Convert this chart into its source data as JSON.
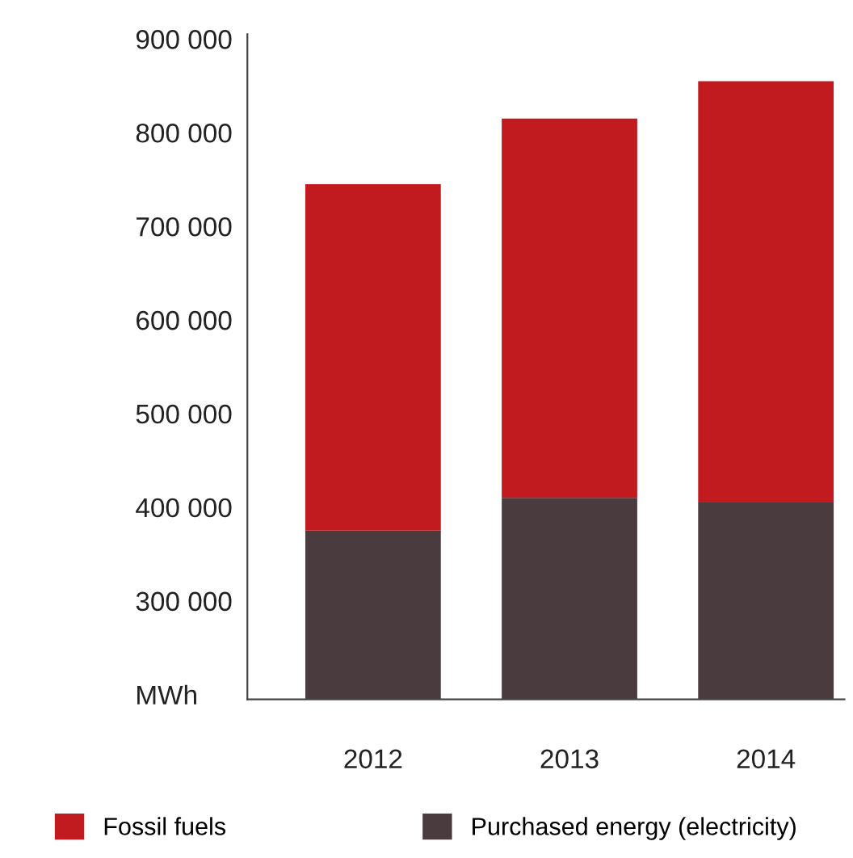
{
  "chart_data": {
    "type": "bar",
    "stacked": true,
    "categories": [
      "2012",
      "2013",
      "2014"
    ],
    "series": [
      {
        "name": "Purchased energy (electricity)",
        "color": "#4a3c3e",
        "values": [
          375000,
          410000,
          405000
        ]
      },
      {
        "name": "Fossil fuels",
        "color": "#c21b1f",
        "values": [
          370000,
          405000,
          450000
        ]
      }
    ],
    "ylim": [
      195000,
      905000
    ],
    "yticks": [
      {
        "value": 200000,
        "label": "MWh"
      },
      {
        "value": 300000,
        "label": "300 000"
      },
      {
        "value": 400000,
        "label": "400 000"
      },
      {
        "value": 500000,
        "label": "500 000"
      },
      {
        "value": 600000,
        "label": "600 000"
      },
      {
        "value": 700000,
        "label": "700 000"
      },
      {
        "value": 800000,
        "label": "800 000"
      },
      {
        "value": 900000,
        "label": "900 000"
      }
    ],
    "grid": false,
    "legend": "bottom"
  }
}
